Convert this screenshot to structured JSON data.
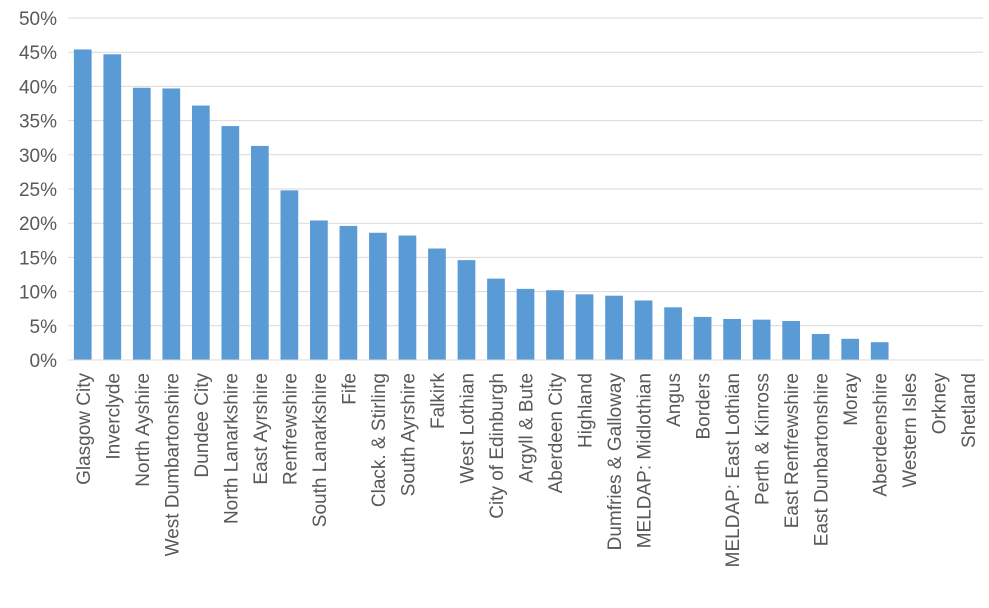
{
  "chart_data": {
    "type": "bar",
    "categories": [
      "Glasgow City",
      "Inverclyde",
      "North Ayshire",
      "West Dumbartonshire",
      "Dundee City",
      "North Lanarkshire",
      "East Ayrshire",
      "Renfrewshire",
      "South Lanarkshire",
      "Fife",
      "Clack. & Stirling",
      "South Ayrshire",
      "Falkirk",
      "West Lothian",
      "City of Edinburgh",
      "Argyll & Bute",
      "Aberdeen City",
      "Highland",
      "Dumfries & Galloway",
      "MELDAP: Midlothian",
      "Angus",
      "Borders",
      "MELDAP: East Lothian",
      "Perth & Kinross",
      "East Renfrewshire",
      "East Dunbartonshire",
      "Moray",
      "Aberdeenshire",
      "Western Isles",
      "Orkney",
      "Shetland"
    ],
    "values": [
      0.454,
      0.447,
      0.398,
      0.397,
      0.372,
      0.342,
      0.313,
      0.248,
      0.204,
      0.196,
      0.186,
      0.182,
      0.163,
      0.146,
      0.119,
      0.104,
      0.102,
      0.096,
      0.094,
      0.087,
      0.077,
      0.063,
      0.06,
      0.059,
      0.057,
      0.038,
      0.031,
      0.026,
      0,
      0,
      0
    ],
    "yticks": [
      "0%",
      "5%",
      "10%",
      "15%",
      "20%",
      "25%",
      "30%",
      "35%",
      "40%",
      "45%",
      "50%"
    ],
    "ylim": [
      0,
      0.5
    ],
    "grid": true,
    "bar_color": "#5b9bd5"
  }
}
